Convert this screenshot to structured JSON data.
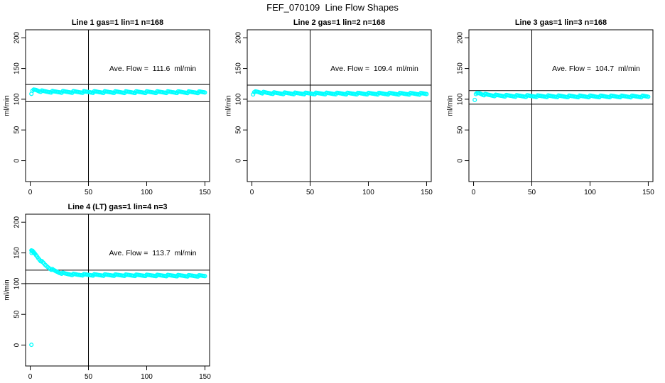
{
  "figure": {
    "title": "FEF_070109  Line Flow Shapes",
    "background_color": "#FFFFFF",
    "text_color": "#000000",
    "marker_shape": "open-circle"
  },
  "chart_data": [
    {
      "type": "scatter",
      "title": "Line 1 gas=1 lin=1 n=168",
      "annotation": "Ave. Flow =  111.6  ml/min",
      "ave_flow_ml_min": 111.6,
      "n": 168,
      "ylabel": "ml/min",
      "xticks": [
        0,
        50,
        100,
        150
      ],
      "yticks": [
        0,
        50,
        100,
        150,
        200
      ],
      "xlim": [
        -4,
        154
      ],
      "ylim": [
        -34,
        213
      ],
      "vline_x": 50,
      "hlines": [
        124,
        96
      ],
      "marker_color": "#00FFFF",
      "axis_color": "#000000",
      "n_markers": 150,
      "band_halfwidth": 1.3,
      "anchors": [
        [
          1,
          107.5
        ],
        [
          2,
          113
        ],
        [
          3,
          115
        ],
        [
          5,
          115
        ],
        [
          8,
          113.5
        ],
        [
          12,
          112.5
        ],
        [
          20,
          112
        ],
        [
          40,
          111.8
        ],
        [
          80,
          111.5
        ],
        [
          120,
          111.5
        ],
        [
          150,
          111.3
        ]
      ],
      "extra_points": []
    },
    {
      "type": "scatter",
      "title": "Line 2 gas=1 lin=2 n=168",
      "annotation": "Ave. Flow =  109.4  ml/min",
      "ave_flow_ml_min": 109.4,
      "n": 168,
      "ylabel": "ml/min",
      "xticks": [
        0,
        50,
        100,
        150
      ],
      "yticks": [
        0,
        50,
        100,
        150,
        200
      ],
      "xlim": [
        -4,
        154
      ],
      "ylim": [
        -34,
        213
      ],
      "vline_x": 50,
      "hlines": [
        123,
        97
      ],
      "marker_color": "#00FFFF",
      "axis_color": "#000000",
      "n_markers": 150,
      "band_halfwidth": 1.3,
      "anchors": [
        [
          1,
          106.5
        ],
        [
          2,
          110.5
        ],
        [
          3,
          112
        ],
        [
          5,
          112
        ],
        [
          8,
          111
        ],
        [
          12,
          110.3
        ],
        [
          20,
          109.8
        ],
        [
          40,
          109.4
        ],
        [
          80,
          109.2
        ],
        [
          120,
          109
        ],
        [
          150,
          108.8
        ]
      ],
      "extra_points": []
    },
    {
      "type": "scatter",
      "title": "Line 3 gas=1 lin=3 n=168",
      "annotation": "Ave. Flow =  104.7  ml/min",
      "ave_flow_ml_min": 104.7,
      "n": 168,
      "ylabel": "ml/min",
      "xticks": [
        0,
        50,
        100,
        150
      ],
      "yticks": [
        0,
        50,
        100,
        150,
        200
      ],
      "xlim": [
        -4,
        154
      ],
      "ylim": [
        -34,
        213
      ],
      "vline_x": 50,
      "hlines": [
        114,
        92
      ],
      "marker_color": "#00FFFF",
      "axis_color": "#000000",
      "n_markers": 150,
      "band_halfwidth": 1.3,
      "anchors": [
        [
          1,
          97.5
        ],
        [
          2,
          107.5
        ],
        [
          3,
          109.5
        ],
        [
          5,
          109.8
        ],
        [
          8,
          108
        ],
        [
          12,
          107
        ],
        [
          20,
          106
        ],
        [
          40,
          105.2
        ],
        [
          80,
          104.6
        ],
        [
          120,
          104.5
        ],
        [
          150,
          104.4
        ]
      ],
      "extra_points": []
    },
    {
      "type": "scatter",
      "title": "Line 4 (LT) gas=1 lin=4 n=3",
      "annotation": "Ave. Flow =  113.7  ml/min",
      "ave_flow_ml_min": 113.7,
      "n": 3,
      "ylabel": "ml/min",
      "xticks": [
        0,
        50,
        100,
        150
      ],
      "yticks": [
        0,
        50,
        100,
        150,
        200
      ],
      "xlim": [
        -4,
        154
      ],
      "ylim": [
        -34,
        213
      ],
      "vline_x": 50,
      "hlines": [
        122,
        100
      ],
      "marker_color": "#00FFFF",
      "axis_color": "#000000",
      "n_markers": 150,
      "band_halfwidth": 1.1,
      "anchors": [
        [
          1,
          153
        ],
        [
          2,
          152.5
        ],
        [
          3,
          150.5
        ],
        [
          4,
          148.5
        ],
        [
          6,
          144
        ],
        [
          8,
          139.5
        ],
        [
          10,
          135.5
        ],
        [
          13,
          130
        ],
        [
          16,
          126
        ],
        [
          20,
          121.5
        ],
        [
          25,
          118
        ],
        [
          30,
          116
        ],
        [
          40,
          114.5
        ],
        [
          60,
          114
        ],
        [
          100,
          113.5
        ],
        [
          150,
          112.5
        ]
      ],
      "extra_points": [
        [
          1,
          0.5
        ],
        [
          1.4,
          153.5
        ],
        [
          2,
          153
        ],
        [
          2.4,
          151.5
        ],
        [
          1.2,
          150
        ],
        [
          3.4,
          149.5
        ]
      ]
    }
  ]
}
